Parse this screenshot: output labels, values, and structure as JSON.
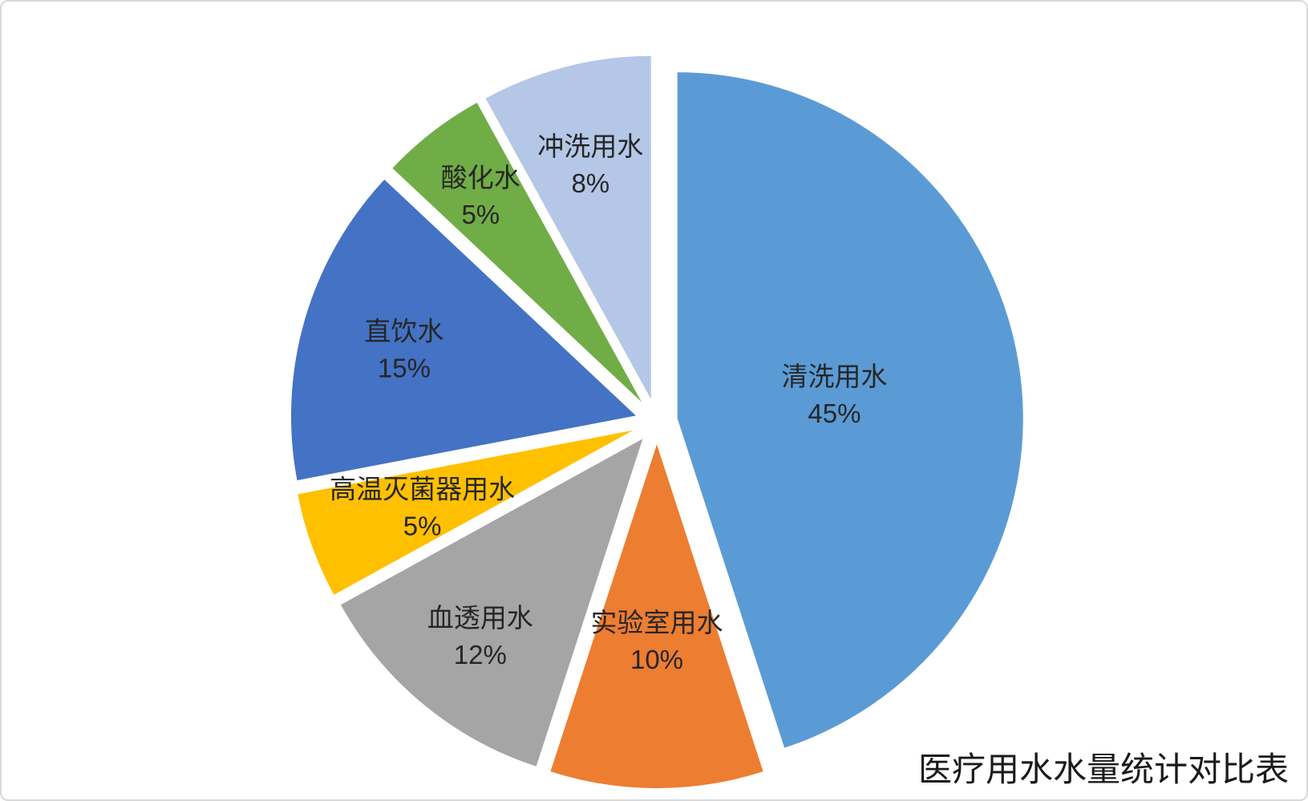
{
  "chart_data": {
    "type": "pie",
    "title": "医疗用水水量统计对比表",
    "title_position": "bottom-right",
    "legend": "none",
    "start_angle_deg": 0,
    "direction": "clockwise",
    "exploded": true,
    "label_format": "name + percent, inside slice",
    "slices": [
      {
        "label": "清洗用水",
        "value": 45,
        "color": "#5B9BD5",
        "label_r": 0.46
      },
      {
        "label": "实验室用水",
        "value": 10,
        "color": "#ED7D31",
        "label_r": 0.57
      },
      {
        "label": "血透用水",
        "value": 12,
        "color": "#A5A5A5",
        "label_r": 0.74
      },
      {
        "label": "高温灭菌器用水",
        "value": 5,
        "color": "#FFC000",
        "label_r": 0.66
      },
      {
        "label": "直饮水",
        "value": 15,
        "color": "#4472C4",
        "label_r": 0.7
      },
      {
        "label": "酸化水",
        "value": 5,
        "color": "#70AD47",
        "label_r": 0.77
      },
      {
        "label": "冲洗用水",
        "value": 8,
        "color": "#B4C7E7",
        "label_r": 0.71
      }
    ]
  }
}
